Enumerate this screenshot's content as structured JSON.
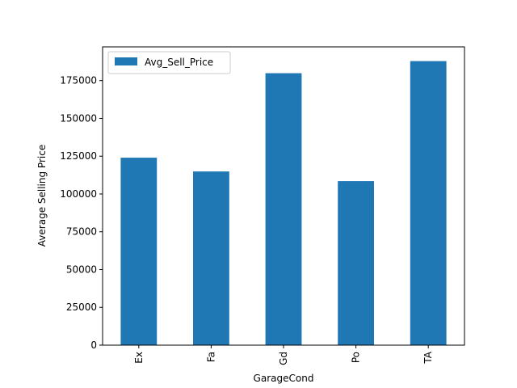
{
  "chart_data": {
    "type": "bar",
    "categories": [
      "Ex",
      "Fa",
      "Gd",
      "Po",
      "TA"
    ],
    "series": [
      {
        "name": "Avg_Sell_Price",
        "values": [
          124000,
          114900,
          179900,
          108500,
          187900
        ],
        "color": "#1f77b4"
      }
    ],
    "xlabel": "GarageCond",
    "ylabel": "Average Selling Price",
    "ylim": [
      0,
      197300
    ],
    "yticks": [
      0,
      25000,
      50000,
      75000,
      100000,
      125000,
      150000,
      175000
    ],
    "xtick_rotation": 90,
    "grid": false,
    "legend_position": "top-left"
  }
}
